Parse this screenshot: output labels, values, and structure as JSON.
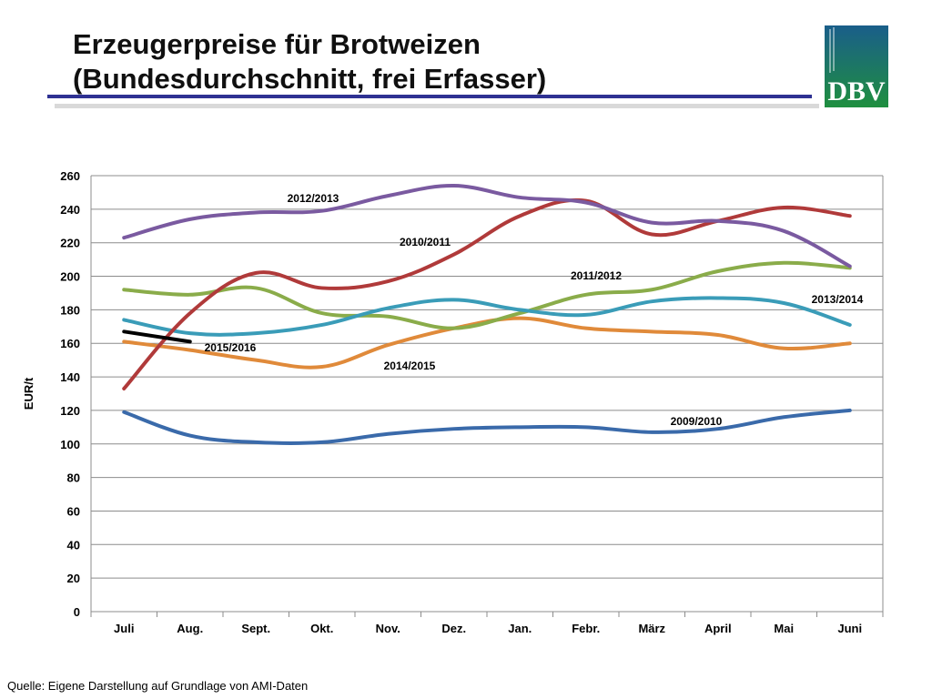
{
  "slide": {
    "title_line1": "Erzeugerpreise für Brotweizen",
    "title_line2": "(Bundesdurchschnitt, frei Erfasser)",
    "source": "Quelle: Eigene Darstellung auf Grundlage von AMI-Daten",
    "logo_text": "DBV",
    "logo_colors": {
      "top": "#1a5e8a",
      "bottom": "#1f8f3f",
      "text": "#ffffff"
    },
    "accent_bar_color": "#2e3192"
  },
  "chart_data": {
    "type": "line",
    "ylabel": "EUR/t",
    "xlabel": "",
    "ylim": [
      0,
      260
    ],
    "yticks": [
      0,
      20,
      40,
      60,
      80,
      100,
      120,
      140,
      160,
      180,
      200,
      220,
      240,
      260
    ],
    "grid": true,
    "categories": [
      "Juli",
      "Aug.",
      "Sept.",
      "Okt.",
      "Nov.",
      "Dez.",
      "Jan.",
      "Febr.",
      "März",
      "April",
      "Mai",
      "Juni"
    ],
    "series": [
      {
        "name": "2009/2010",
        "color": "#3a6aaa",
        "values": [
          119,
          105,
          101,
          101,
          106,
          109,
          110,
          110,
          107,
          109,
          116,
          120
        ]
      },
      {
        "name": "2010/2011",
        "color": "#b03a3a",
        "values": [
          133,
          178,
          202,
          193,
          197,
          213,
          236,
          245,
          225,
          233,
          241,
          236
        ]
      },
      {
        "name": "2011/2012",
        "color": "#8aac4a",
        "values": [
          192,
          189,
          193,
          178,
          176,
          169,
          178,
          189,
          192,
          203,
          208,
          205
        ]
      },
      {
        "name": "2012/2013",
        "color": "#7a5aa0",
        "values": [
          223,
          234,
          238,
          239,
          248,
          254,
          247,
          244,
          232,
          233,
          227,
          206
        ]
      },
      {
        "name": "2013/2014",
        "color": "#3a9cb8",
        "values": [
          174,
          166,
          166,
          171,
          181,
          186,
          180,
          177,
          185,
          187,
          184,
          171
        ]
      },
      {
        "name": "2014/2015",
        "color": "#e08a3a",
        "values": [
          161,
          156,
          150,
          146,
          159,
          169,
          175,
          169,
          167,
          165,
          157,
          160
        ]
      },
      {
        "name": "2015/2016",
        "color": "#000000",
        "values": [
          167,
          161,
          null,
          null,
          null,
          null,
          null,
          null,
          null,
          null,
          null,
          null
        ]
      }
    ],
    "annotations": [
      {
        "text": "2012/2013",
        "series": "2012/2013"
      },
      {
        "text": "2010/2011",
        "series": "2010/2011"
      },
      {
        "text": "2011/2012",
        "series": "2011/2012"
      },
      {
        "text": "2013/2014",
        "series": "2013/2014"
      },
      {
        "text": "2015/2016",
        "series": "2015/2016"
      },
      {
        "text": "2014/2015",
        "series": "2014/2015"
      },
      {
        "text": "2009/2010",
        "series": "2009/2010"
      }
    ]
  }
}
